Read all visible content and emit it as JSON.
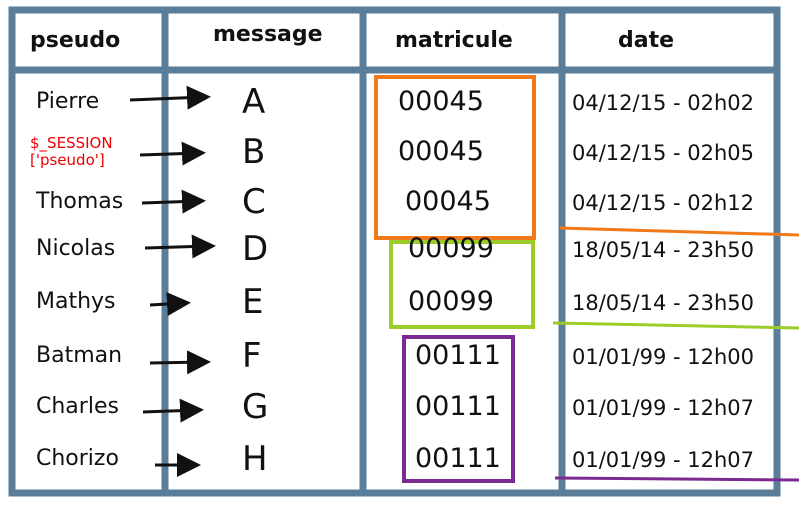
{
  "table": {
    "header": [
      "pseudo",
      "message",
      "matricule",
      "date"
    ],
    "rows": [
      [
        "Pierre",
        "A",
        "00045",
        "04/12/15 - 02h02"
      ],
      [
        "$_SESSION ['pseudo']",
        "B",
        "00045",
        "04/12/15 - 02h05"
      ],
      [
        "Thomas",
        "C",
        "00045",
        "04/12/15 - 02h12"
      ],
      [
        "Nicolas",
        "D",
        "00099",
        "18/05/14 - 23h50"
      ],
      [
        "Mathys",
        "E",
        "00099",
        "18/05/14 - 23h50"
      ],
      [
        "Batman",
        "F",
        "00111",
        "01/01/99 - 12h00"
      ],
      [
        "Charles",
        "G",
        "00111",
        "01/01/99 - 12h07"
      ],
      [
        "Chorizo",
        "H",
        "00111",
        "01/01/99 - 12h07"
      ]
    ]
  }
}
